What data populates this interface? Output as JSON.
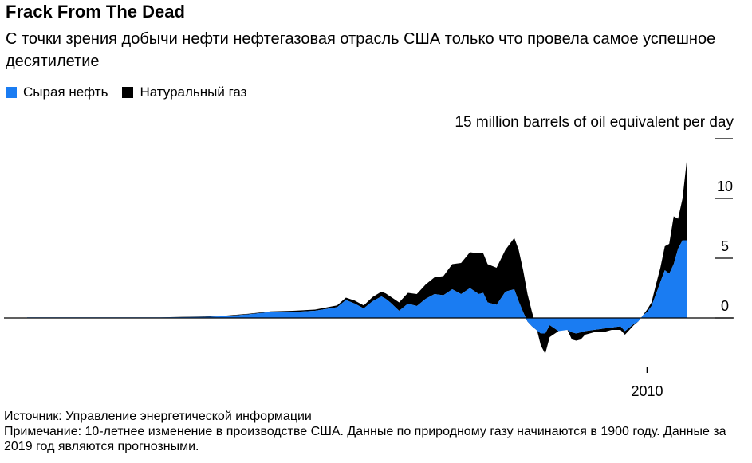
{
  "title": "Frack From The Dead",
  "subtitle": "С точки зрения добычи нефти нефтегазовая отрасль США только что провела самое успешное десятилетие",
  "legend": [
    {
      "label": "Сырая нефть",
      "color": "#1a7cf2"
    },
    {
      "label": "Натуральный газ",
      "color": "#000000"
    }
  ],
  "chart_data": {
    "type": "area",
    "stacked": true,
    "ylabel": "15 million barrels of oil equivalent per day",
    "y_ticks": [
      0,
      5,
      10,
      15
    ],
    "y_tick_labels": [
      "0",
      "5",
      "10",
      ""
    ],
    "ylim": [
      -3.5,
      15
    ],
    "xlim": [
      1870,
      2020
    ],
    "x_ticks": [
      2010
    ],
    "x_tick_labels": [
      "2010"
    ],
    "x": [
      1870,
      1880,
      1890,
      1900,
      1910,
      1915,
      1920,
      1925,
      1930,
      1935,
      1940,
      1942,
      1944,
      1946,
      1948,
      1950,
      1951,
      1952,
      1954,
      1956,
      1958,
      1960,
      1962,
      1964,
      1966,
      1968,
      1970,
      1972,
      1973,
      1974,
      1976,
      1978,
      1980,
      1981,
      1982,
      1983,
      1984,
      1985,
      1986,
      1987,
      1988,
      1990,
      1992,
      1993,
      1994,
      1995,
      1996,
      1998,
      2000,
      2002,
      2004,
      2005,
      2006,
      2007,
      2008,
      2009,
      2010,
      2011,
      2012,
      2013,
      2014,
      2015,
      2016,
      2017,
      2018,
      2019
    ],
    "series": [
      {
        "name": "Сырая нефть",
        "color": "#1a7cf2",
        "values": [
          0.05,
          0.05,
          0.05,
          0.05,
          0.08,
          0.15,
          0.3,
          0.5,
          0.5,
          0.6,
          0.9,
          1.5,
          1.2,
          0.8,
          1.4,
          1.8,
          1.6,
          1.3,
          0.6,
          1.2,
          1.0,
          1.6,
          2.0,
          1.9,
          2.4,
          2.0,
          2.5,
          2.0,
          2.1,
          1.3,
          1.1,
          2.2,
          2.4,
          1.4,
          0.5,
          -0.3,
          -0.7,
          -1.0,
          -1.3,
          -1.3,
          -0.6,
          -1.1,
          -1.0,
          -1.2,
          -1.3,
          -1.2,
          -1.1,
          -1.0,
          -0.9,
          -0.8,
          -0.7,
          -1.1,
          -0.8,
          -0.5,
          -0.3,
          0.2,
          0.5,
          1.0,
          2.0,
          3.0,
          4.0,
          3.7,
          4.5,
          5.8,
          6.5,
          6.5
        ]
      },
      {
        "name": "Натуральный газ",
        "color": "#000000",
        "values": [
          0,
          0,
          0,
          0,
          0.05,
          0.05,
          0.05,
          0.05,
          0.1,
          0.1,
          0.15,
          0.2,
          0.25,
          0.25,
          0.35,
          0.4,
          0.45,
          0.5,
          0.7,
          0.9,
          1.0,
          1.2,
          1.4,
          1.6,
          2.1,
          2.6,
          3.0,
          3.4,
          3.3,
          3.2,
          3.1,
          3.5,
          4.3,
          4.3,
          3.5,
          2.3,
          1.2,
          0.2,
          -1.0,
          -1.7,
          -1.0,
          0.0,
          0.0,
          -0.6,
          -0.6,
          -0.6,
          -0.3,
          -0.2,
          -0.3,
          -0.2,
          -0.3,
          -0.3,
          -0.2,
          -0.1,
          0.0,
          0.0,
          0.2,
          0.3,
          0.8,
          1.2,
          2.0,
          2.5,
          4.0,
          2.5,
          3.5,
          6.8
        ]
      }
    ],
    "grid": false,
    "legend_position": "top-left"
  },
  "footer": {
    "source": "Источник: Управление энергетической информации",
    "note": "Примечание: 10-летнее изменение в производстве США. Данные по природному газу начинаются в 1900 году. Данные за 2019 год являются прогнозными."
  }
}
